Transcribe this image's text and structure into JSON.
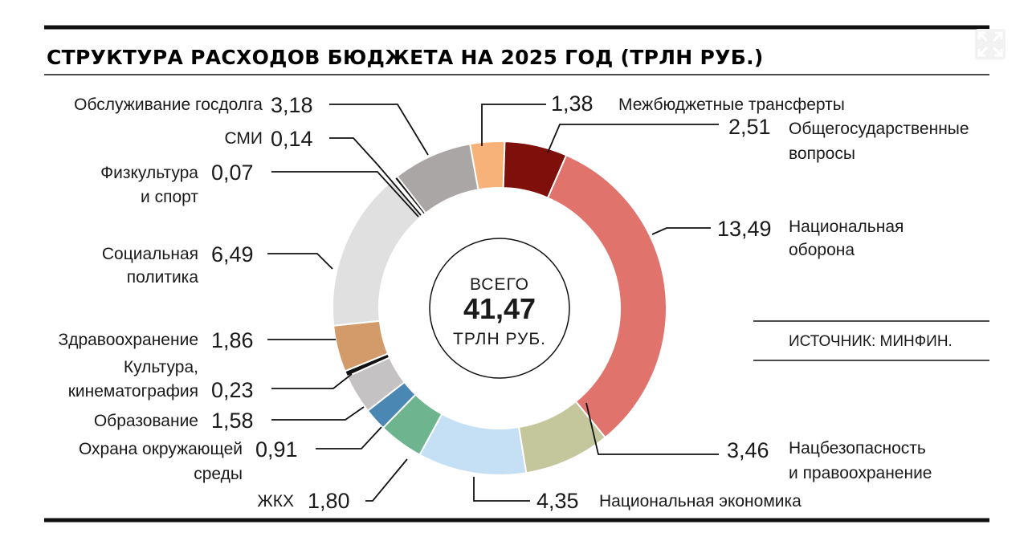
{
  "chart_data": {
    "type": "pie",
    "variant": "donut",
    "title": "СТРУКТУРА РАСХОДОВ БЮДЖЕТА НА 2025 ГОД (ТРЛН РУБ.)",
    "center": {
      "line1": "ВСЕГО",
      "total": "41,47",
      "line3": "ТРЛН РУБ."
    },
    "source": "ИСТОЧНИК: МИНФИН.",
    "slices": [
      {
        "label": "Межбюджетные трансферты",
        "value": 1.38,
        "display": "1,38",
        "color": "#f7b27a"
      },
      {
        "label": "Общегосударственные вопросы",
        "value": 2.51,
        "display": "2,51",
        "color": "#7e0f0a"
      },
      {
        "label": "Национальная оборона",
        "value": 13.49,
        "display": "13,49",
        "color": "#e0736b"
      },
      {
        "label": "Нацбезопасность и правоохранение",
        "value": 3.46,
        "display": "3,46",
        "color": "#c3c79b"
      },
      {
        "label": "Национальная экономика",
        "value": 4.35,
        "display": "4,35",
        "color": "#c5dff4"
      },
      {
        "label": "ЖКХ",
        "value": 1.8,
        "display": "1,80",
        "color": "#6db48f"
      },
      {
        "label": "Охрана окружающей среды",
        "value": 0.91,
        "display": "0,91",
        "color": "#4a87b3"
      },
      {
        "label": "Образование",
        "value": 1.58,
        "display": "1,58",
        "color": "#c4c2c2"
      },
      {
        "label": "Культура, кинематография",
        "value": 0.23,
        "display": "0,23",
        "color": "#111111"
      },
      {
        "label": "Здравоохранение",
        "value": 1.86,
        "display": "1,86",
        "color": "#d39a6a"
      },
      {
        "label": "Социальная политика",
        "value": 6.49,
        "display": "6,49",
        "color": "#e0e0e0"
      },
      {
        "label": "Физкультура и спорт",
        "value": 0.07,
        "display": "0,07",
        "color": "#555555"
      },
      {
        "label": "СМИ",
        "value": 0.14,
        "display": "0,14",
        "color": "#111111"
      },
      {
        "label": "Обслуживание госдолга",
        "value": 3.18,
        "display": "3,18",
        "color": "#aaa6a5"
      }
    ]
  },
  "labels": {
    "transfers": "Межбюджетные трансферты",
    "general_1": "Общегосударственные",
    "general_2": "вопросы",
    "defense_1": "Национальная",
    "defense_2": "оборона",
    "security_1": "Нацбезопасность",
    "security_2": "и правоохранение",
    "economy": "Национальная экономика",
    "housing": "ЖКХ",
    "environment_1": "Охрана окружающей",
    "environment_2": "среды",
    "education": "Образование",
    "culture_1": "Культура,",
    "culture_2": "кинематография",
    "health": "Здравоохранение",
    "social_1": "Социальная",
    "social_2": "политика",
    "sport_1": "Физкультура",
    "sport_2": "и спорт",
    "media": "СМИ",
    "debt": "Обслуживание госдолга"
  }
}
